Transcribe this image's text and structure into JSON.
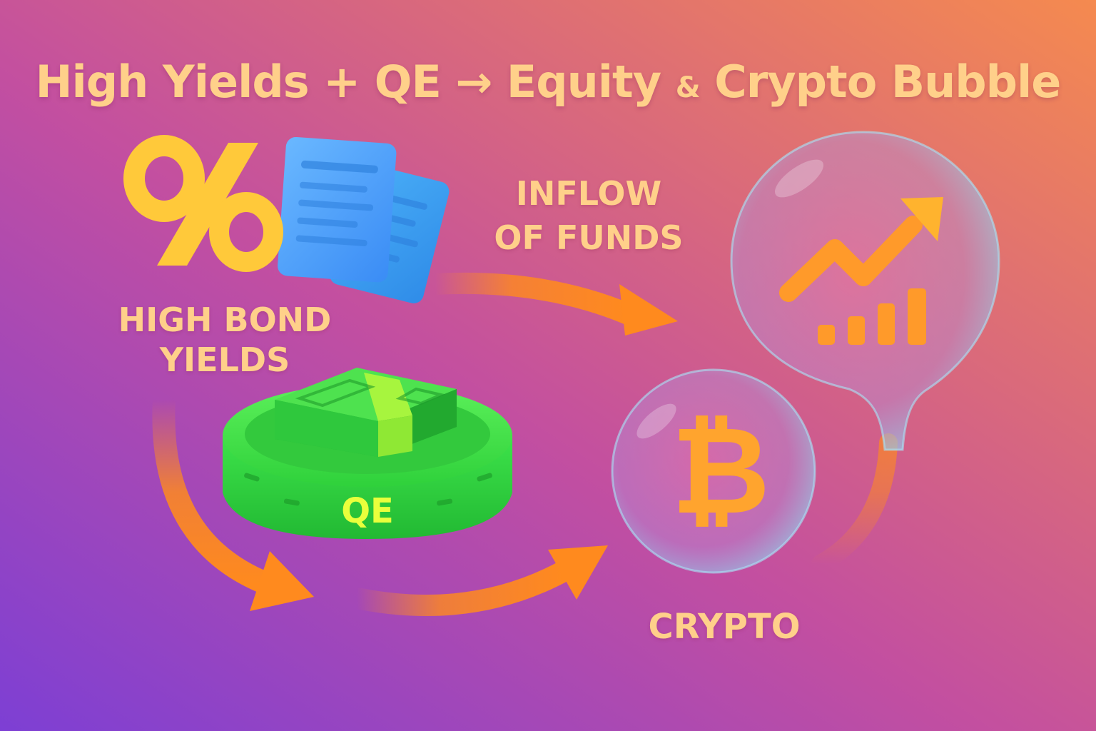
{
  "title": {
    "part1": "High Yields + QE → Equity",
    "amp": "&",
    "part2": "Crypto Bubble"
  },
  "labels": {
    "bond_line1": "HIGH BOND",
    "bond_line2": "YIELDS",
    "inflow_line1": "INFLOW",
    "inflow_line2": "OF FUNDS",
    "qe": "QE",
    "crypto": "CRYPTO",
    "bitcoin_symbol": "₿"
  },
  "icons": [
    "percent-icon",
    "bond-documents-icon",
    "money-stack-icon",
    "bitcoin-icon",
    "trend-up-arrow-icon",
    "bar-chart-icon"
  ],
  "colors": {
    "text_peach": "#ffd08a",
    "arrow_orange": "#ff8a1e",
    "qe_green": "#3fe043",
    "qe_text": "#e9ff3c",
    "percent_yellow": "#ffc93a",
    "doc_blue": "#4aa3ff",
    "bitcoin_orange": "#ffa42e"
  }
}
